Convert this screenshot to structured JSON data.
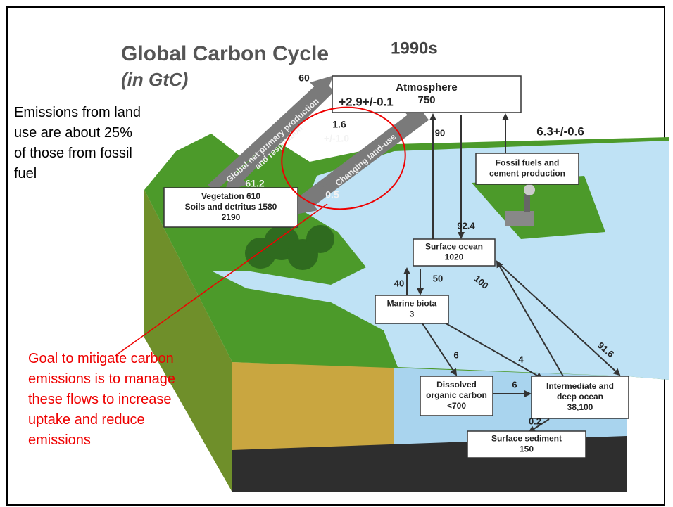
{
  "title": {
    "text": "Global Carbon Cycle",
    "period": "1990s",
    "units": "(in GtC)"
  },
  "notes": {
    "land_use": "Emissions from land use are about 25% of those from fossil fuel",
    "goal": "Goal to mitigate carbon emissions is to manage these flows to increase uptake and reduce emissions"
  },
  "nodes": [
    {
      "lines": [
        "Atmosphere",
        "750"
      ]
    },
    {
      "lines": [
        "Vegetation 610",
        "Soils and detritus 1580",
        "2190"
      ]
    },
    {
      "lines": [
        "Fossil fuels and",
        "cement production"
      ]
    },
    {
      "lines": [
        "Surface ocean",
        "1020"
      ]
    },
    {
      "lines": [
        "Marine biota",
        "3"
      ]
    },
    {
      "lines": [
        "Dissolved",
        "organic carbon",
        "<700"
      ]
    },
    {
      "lines": [
        "Intermediate and",
        "deep ocean",
        "38,100"
      ]
    },
    {
      "lines": [
        "Surface sediment",
        "150"
      ]
    }
  ],
  "flow_labels": [
    "60",
    "61.2",
    "1.6",
    "+/-1.0",
    "0.5",
    "+2.9+/-0.1",
    "90",
    "92.4",
    "6.3+/-0.6",
    "40",
    "50",
    "100",
    "91.6",
    "6",
    "4",
    "6",
    "0.2"
  ],
  "arrow_captions": [
    [
      "Global net primary production",
      "and respiration"
    ],
    [
      "Changing land-use"
    ]
  ]
}
